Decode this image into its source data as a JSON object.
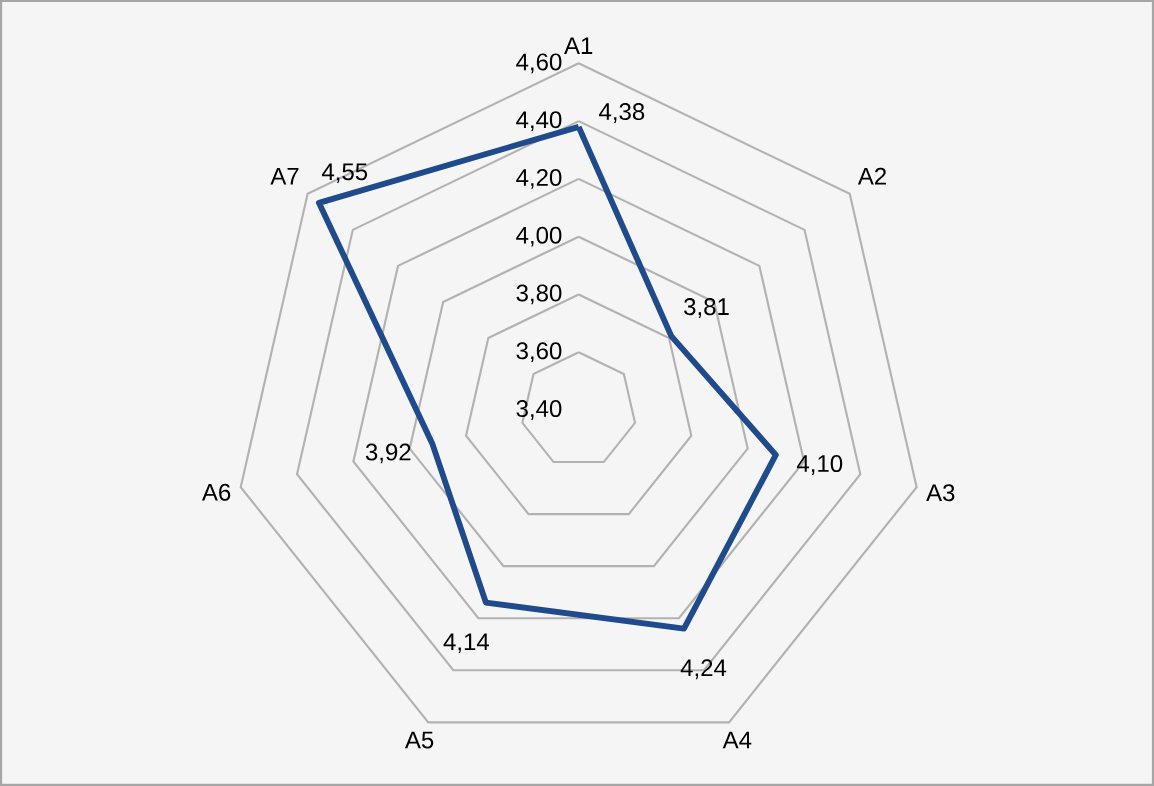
{
  "chart_data": {
    "type": "radar",
    "categories": [
      "A1",
      "A2",
      "A3",
      "A4",
      "A5",
      "A6",
      "A7"
    ],
    "series": [
      {
        "color": "#1f4a8c",
        "values": [
          4.38,
          3.81,
          4.1,
          4.24,
          4.14,
          3.92,
          4.55
        ],
        "value_labels": [
          "4,38",
          "3,81",
          "4,10",
          "4,24",
          "4,14",
          "3,92",
          "4,55"
        ]
      }
    ],
    "ylim": [
      3.4,
      4.6
    ],
    "yticks": [
      {
        "value": 3.4,
        "label": "3,40"
      },
      {
        "value": 3.6,
        "label": "3,60"
      },
      {
        "value": 3.8,
        "label": "3,80"
      },
      {
        "value": 4.0,
        "label": "4,00"
      },
      {
        "value": 4.2,
        "label": "4,20"
      },
      {
        "value": 4.4,
        "label": "4,40"
      },
      {
        "value": 4.6,
        "label": "4,60"
      }
    ],
    "grid": true
  }
}
